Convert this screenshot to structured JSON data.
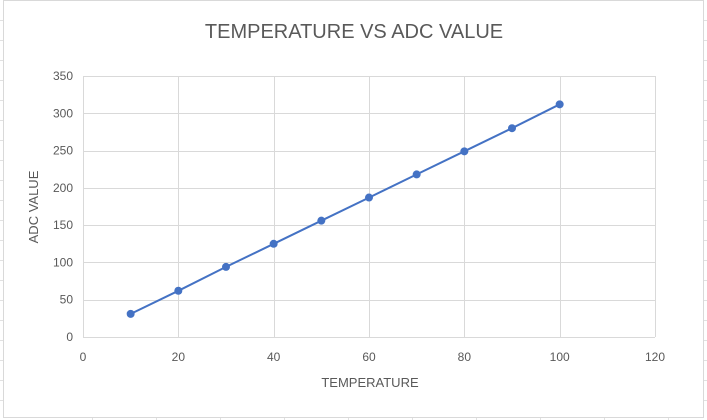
{
  "chart_data": {
    "type": "scatter",
    "title": "TEMPERATURE  VS  ADC VALUE",
    "xlabel": "TEMPERATURE",
    "ylabel": "ADC VALUE",
    "xlim": [
      0,
      120
    ],
    "ylim": [
      0,
      350
    ],
    "xticks": [
      0,
      20,
      40,
      60,
      80,
      100,
      120
    ],
    "yticks": [
      0,
      50,
      100,
      150,
      200,
      250,
      300,
      350
    ],
    "grid": true,
    "legend": "none",
    "line_style": "straight lines with markers",
    "series": [
      {
        "color": "#4472c4",
        "x": [
          10,
          20,
          30,
          40,
          50,
          60,
          70,
          80,
          90,
          100
        ],
        "y": [
          31,
          62,
          94,
          125,
          156,
          187,
          218,
          249,
          280,
          312
        ]
      }
    ]
  }
}
